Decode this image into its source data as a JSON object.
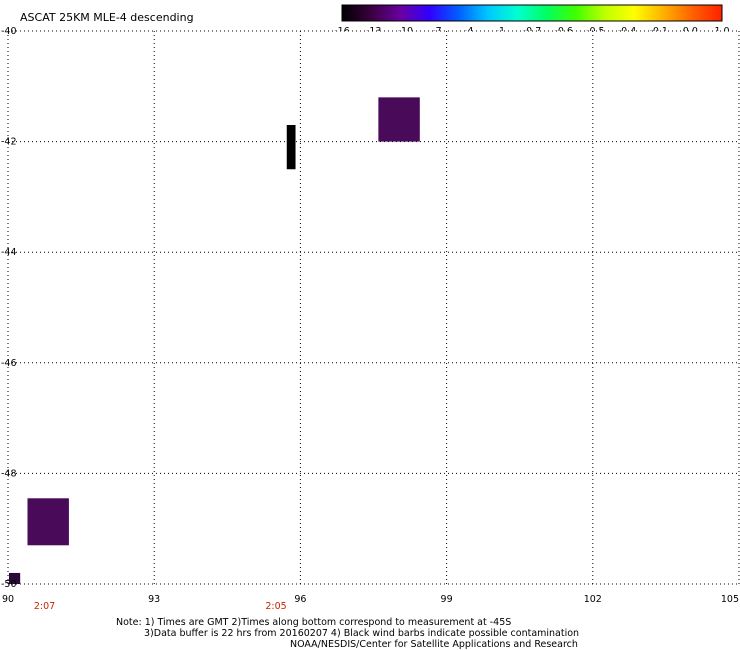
{
  "title": "ASCAT 25KM MLE-4 descending",
  "colorbar": {
    "labels": [
      "-16",
      "-13",
      "-10",
      "-7",
      "-4",
      "-1",
      "-0.7",
      "-0.6",
      "-0.5",
      "-0.4",
      "-0.1",
      "0.0",
      "1.0"
    ],
    "gradient": [
      "#000000",
      "#3a0040",
      "#6a00a0",
      "#3000ff",
      "#0060ff",
      "#00c8ff",
      "#00ffd0",
      "#00ff60",
      "#40ff00",
      "#c0ff00",
      "#ffff00",
      "#ffb000",
      "#ff6000",
      "#ff2000"
    ]
  },
  "map": {
    "x_ticks": [
      "90",
      "93",
      "96",
      "99",
      "102",
      "105"
    ],
    "y_ticks": [
      "-40",
      "-42",
      "-44",
      "-46",
      "-48",
      "-50"
    ],
    "x_range": [
      90,
      105
    ],
    "y_range": [
      -50,
      -40
    ],
    "grid": "dotted",
    "time_labels": [
      {
        "text": "2:07",
        "lon": 90.75
      },
      {
        "text": "2:05",
        "lon": 95.5
      }
    ],
    "time_color": "#cc2200",
    "patches": [
      {
        "name": "patch-purple-top",
        "lon": [
          97.6,
          98.45
        ],
        "lat": [
          -41.2,
          -42.0
        ],
        "color": "#4a0a5a"
      },
      {
        "name": "patch-black-strip",
        "lon": [
          95.72,
          95.9
        ],
        "lat": [
          -41.7,
          -42.5
        ],
        "color": "#000000"
      },
      {
        "name": "patch-purple-bottom",
        "lon": [
          90.4,
          91.25
        ],
        "lat": [
          -48.45,
          -49.3
        ],
        "color": "#4a0a5a"
      },
      {
        "name": "patch-small-corner",
        "lon": [
          90.02,
          90.25
        ],
        "lat": [
          -49.8,
          -50.0
        ],
        "color": "#2a0a3a"
      }
    ]
  },
  "notes": {
    "line1": "Note: 1) Times are GMT 2)Times along bottom correspond to measurement at -45S",
    "line2": "3)Data buffer is 22 hrs from 20160207 4) Black wind barbs indicate possible contamination",
    "line3": "NOAA/NESDIS/Center for Satellite Applications and Research"
  }
}
